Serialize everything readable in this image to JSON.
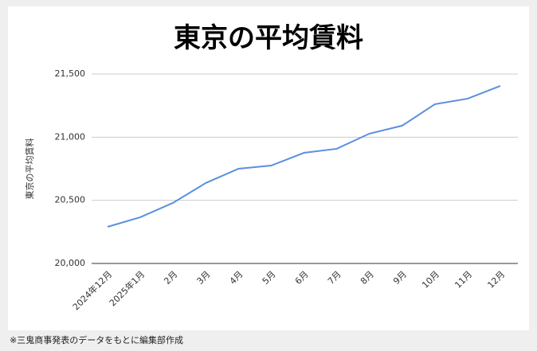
{
  "chart_data": {
    "type": "line",
    "title": "東京の平均賃料",
    "y_label": "東京の平均賃料",
    "categories": [
      "2024年12月",
      "2025年1月",
      "2月",
      "3月",
      "4月",
      "5月",
      "6月",
      "7月",
      "8月",
      "9月",
      "10月",
      "11月",
      "12月"
    ],
    "series": [
      {
        "name": "東京の平均賃料",
        "color": "#5b8fde",
        "values": [
          20290,
          20366,
          20480,
          20637,
          20750,
          20775,
          20876,
          20908,
          21028,
          21091,
          21261,
          21305,
          21406
        ]
      }
    ],
    "ylim": [
      20000,
      21500
    ],
    "yticks": [
      {
        "value": 20000,
        "label": "20,000"
      },
      {
        "value": 20500,
        "label": "20,500"
      },
      {
        "value": 21000,
        "label": "21,000"
      },
      {
        "value": 21500,
        "label": "21,500"
      }
    ],
    "grid": true
  },
  "footnote": "※三鬼商事発表のデータをもとに編集部作成"
}
